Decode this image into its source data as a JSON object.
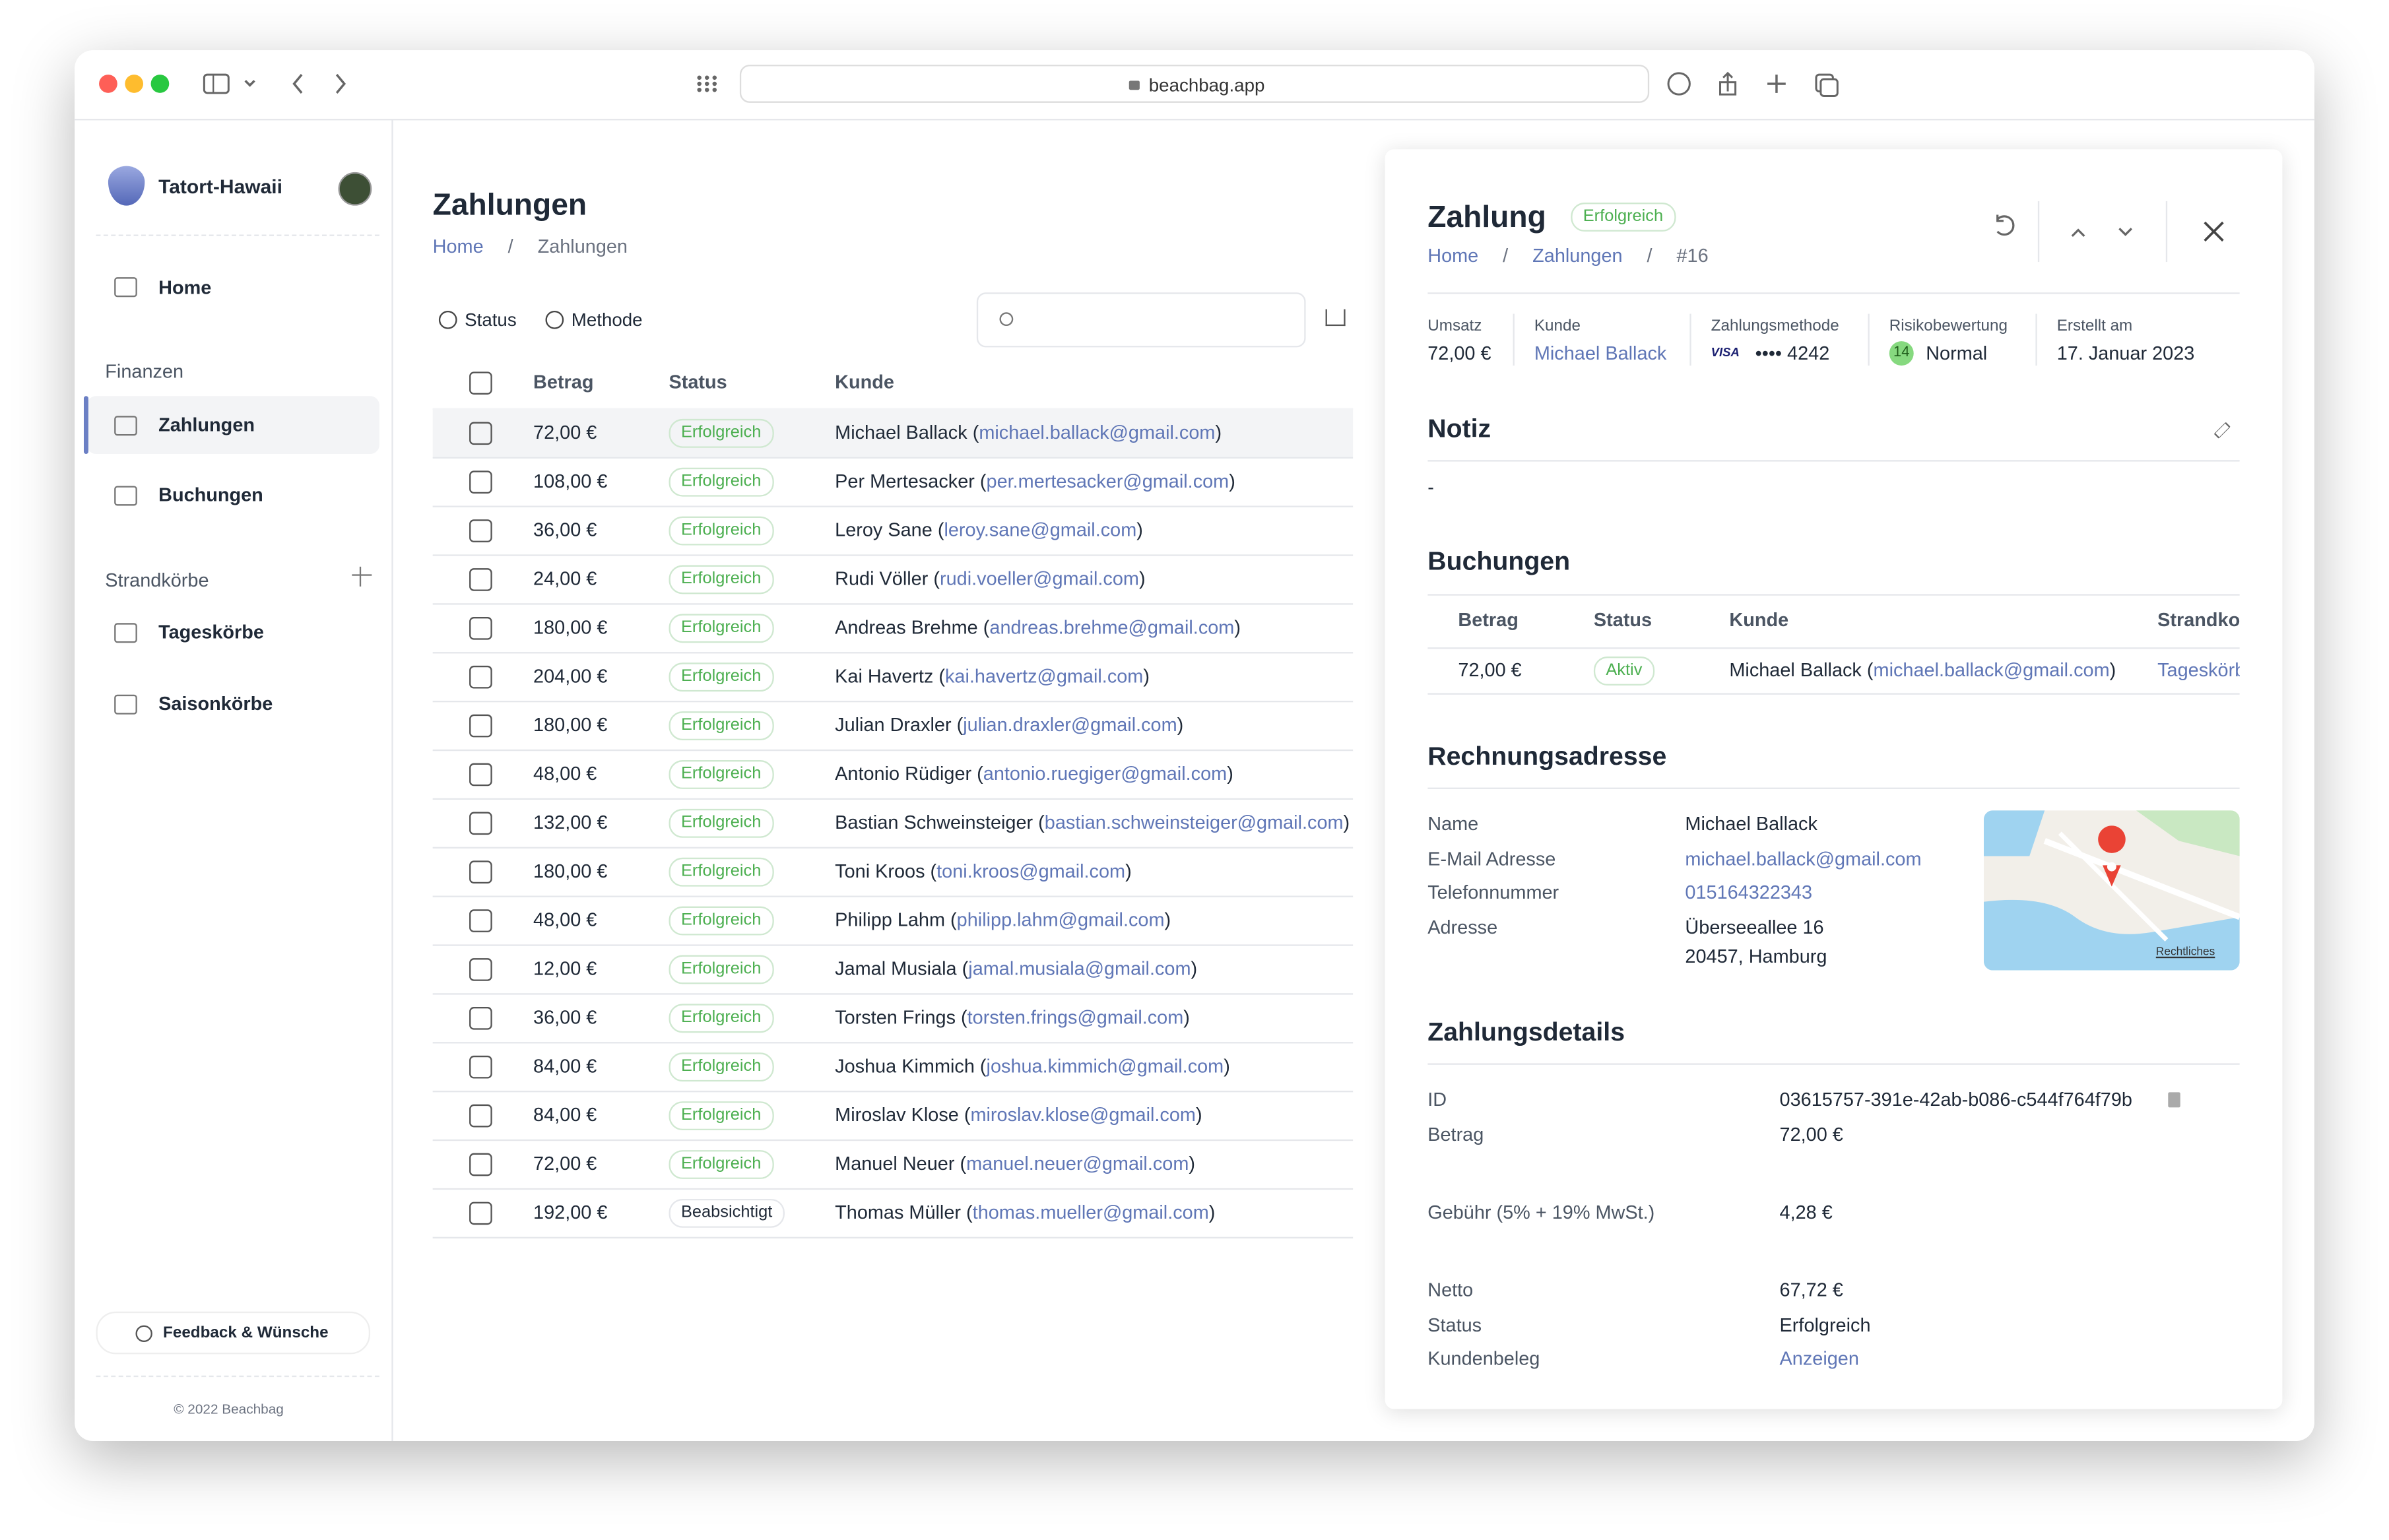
{
  "browser": {
    "url": "beachbag.app"
  },
  "sidebar": {
    "org": "Tatort-Hawaii",
    "home": "Home",
    "sections": [
      {
        "title": "Finanzen",
        "items": [
          "Zahlungen",
          "Buchungen"
        ]
      },
      {
        "title": "Strandkörbe",
        "items": [
          "Tageskörbe",
          "Saisonkörbe"
        ]
      }
    ],
    "feedback": "Feedback & Wünsche",
    "footer": "© 2022 Beachbag"
  },
  "main": {
    "title": "Zahlungen",
    "breadcrumb": [
      "Home",
      "Zahlungen"
    ],
    "filters": [
      "Status",
      "Methode"
    ],
    "table": {
      "headers": [
        "Betrag",
        "Status",
        "Kunde"
      ],
      "rows": [
        [
          "72,00 €",
          "Erfolgreich",
          "Michael Ballack",
          "michael.ballack@gmail.com"
        ],
        [
          "108,00 €",
          "Erfolgreich",
          "Per Mertesacker",
          "per.mertesacker@gmail.com"
        ],
        [
          "36,00 €",
          "Erfolgreich",
          "Leroy Sane",
          "leroy.sane@gmail.com"
        ],
        [
          "24,00 €",
          "Erfolgreich",
          "Rudi Völler",
          "rudi.voeller@gmail.com"
        ],
        [
          "180,00 €",
          "Erfolgreich",
          "Andreas Brehme",
          "andreas.brehme@gmail.com"
        ],
        [
          "204,00 €",
          "Erfolgreich",
          "Kai Havertz",
          "kai.havertz@gmail.com"
        ],
        [
          "180,00 €",
          "Erfolgreich",
          "Julian Draxler",
          "julian.draxler@gmail.com"
        ],
        [
          "48,00 €",
          "Erfolgreich",
          "Antonio Rüdiger",
          "antonio.ruegiger@gmail.com"
        ],
        [
          "132,00 €",
          "Erfolgreich",
          "Bastian Schweinsteiger",
          "bastian.schweinsteiger@gmail.com"
        ],
        [
          "180,00 €",
          "Erfolgreich",
          "Toni Kroos",
          "toni.kroos@gmail.com"
        ],
        [
          "48,00 €",
          "Erfolgreich",
          "Philipp Lahm",
          "philipp.lahm@gmail.com"
        ],
        [
          "12,00 €",
          "Erfolgreich",
          "Jamal Musiala",
          "jamal.musiala@gmail.com"
        ],
        [
          "36,00 €",
          "Erfolgreich",
          "Torsten Frings",
          "torsten.frings@gmail.com"
        ],
        [
          "84,00 €",
          "Erfolgreich",
          "Joshua Kimmich",
          "joshua.kimmich@gmail.com"
        ],
        [
          "84,00 €",
          "Erfolgreich",
          "Miroslav Klose",
          "miroslav.klose@gmail.com"
        ],
        [
          "72,00 €",
          "Erfolgreich",
          "Manuel Neuer",
          "manuel.neuer@gmail.com"
        ],
        [
          "192,00 €",
          "Beabsichtigt",
          "Thomas Müller",
          "thomas.mueller@gmail.com"
        ]
      ]
    }
  },
  "detail": {
    "title": "Zahlung",
    "badge": "Erfolgreich",
    "breadcrumb": [
      "Home",
      "Zahlungen",
      "#16"
    ],
    "stats": [
      {
        "label": "Umsatz",
        "value": "72,00 €"
      },
      {
        "label": "Kunde",
        "value": "Michael Ballack"
      },
      {
        "label": "Zahlungsmethode",
        "brand": "VISA",
        "value": "•••• 4242"
      },
      {
        "label": "Risikobewertung",
        "score": "14",
        "value": "Normal"
      },
      {
        "label": "Erstellt am",
        "value": "17. Januar 2023"
      }
    ],
    "note": {
      "title": "Notiz",
      "text": "-"
    },
    "bookings": {
      "title": "Buchungen",
      "headers": [
        "Betrag",
        "Status",
        "Kunde",
        "Strandkorb"
      ],
      "rows": [
        [
          "72,00 €",
          "Aktiv",
          "Michael Ballack",
          "michael.ballack@gmail.com",
          "Tageskörbe"
        ]
      ]
    },
    "address": {
      "title": "Rechnungsadresse",
      "rows": [
        [
          "Name",
          "Michael Ballack"
        ],
        [
          "E-Mail Adresse",
          "michael.ballack@gmail.com"
        ],
        [
          "Telefonnummer",
          "015164322343"
        ],
        [
          "Adresse",
          "Überseeallee 16"
        ],
        [
          null,
          "20457, Hamburg"
        ]
      ],
      "map_legal": "Rechtliches"
    },
    "details": {
      "title": "Zahlungsdetails",
      "rows": [
        [
          "ID",
          "03615757-391e-42ab-b086-c544f764f79b"
        ],
        [
          "Betrag",
          "72,00 €"
        ],
        [
          "Gebühr (5% + 19% MwSt.)",
          "4,28 €"
        ],
        [
          "Netto",
          "67,72 €"
        ],
        [
          "Status",
          "Erfolgreich"
        ],
        [
          "Kundenbeleg",
          "Anzeigen"
        ]
      ]
    }
  }
}
